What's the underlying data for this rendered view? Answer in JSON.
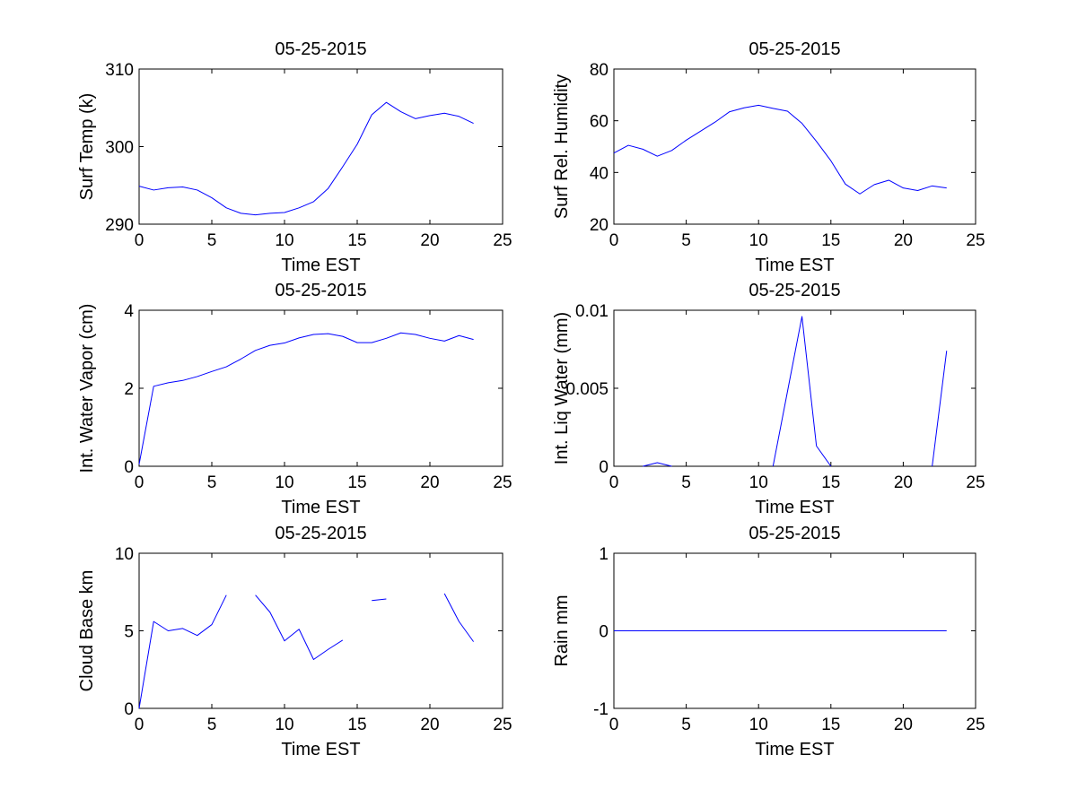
{
  "figure": {
    "background": "#ffffff",
    "line_color": "#0000ff",
    "layout": "3 rows x 2 columns"
  },
  "chart_data": [
    {
      "type": "line",
      "title": "05-25-2015",
      "xlabel": "Time EST",
      "ylabel": "Surf Temp (k)",
      "xlim": [
        0,
        25
      ],
      "ylim": [
        290,
        310
      ],
      "xticks": [
        0,
        5,
        10,
        15,
        20,
        25
      ],
      "yticks": [
        290,
        300,
        310
      ],
      "ytick_labels": [
        "290",
        "300",
        "310"
      ],
      "grid": false,
      "x": [
        0,
        1,
        2,
        3,
        4,
        5,
        6,
        7,
        8,
        9,
        10,
        11,
        12,
        13,
        14,
        15,
        16,
        17,
        18,
        19,
        20,
        21,
        22,
        23
      ],
      "series": [
        {
          "values": [
            294.9,
            294.4,
            294.7,
            294.8,
            294.4,
            293.4,
            292.1,
            291.4,
            291.2,
            291.4,
            291.5,
            292.1,
            292.9,
            294.6,
            297.4,
            300.3,
            304.1,
            305.7,
            304.5,
            303.6,
            304.0,
            304.3,
            303.9,
            303.0
          ]
        }
      ]
    },
    {
      "type": "line",
      "title": "05-25-2015",
      "xlabel": "Time EST",
      "ylabel": "Surf Rel. Humidity",
      "xlim": [
        0,
        25
      ],
      "ylim": [
        20,
        80
      ],
      "xticks": [
        0,
        5,
        10,
        15,
        20,
        25
      ],
      "yticks": [
        20,
        40,
        60,
        80
      ],
      "ytick_labels": [
        "20",
        "40",
        "60",
        "80"
      ],
      "grid": false,
      "x": [
        0,
        1,
        2,
        3,
        4,
        5,
        6,
        7,
        8,
        9,
        10,
        11,
        12,
        13,
        14,
        15,
        16,
        17,
        18,
        19,
        20,
        21,
        22,
        23
      ],
      "series": [
        {
          "values": [
            47.5,
            50.5,
            49.0,
            46.3,
            48.5,
            52.5,
            56.0,
            59.5,
            63.5,
            65.0,
            66.0,
            64.8,
            63.7,
            59.0,
            52.0,
            44.5,
            35.5,
            31.7,
            35.3,
            37.0,
            34.0,
            33.0,
            34.8,
            34.0
          ]
        }
      ]
    },
    {
      "type": "line",
      "title": "05-25-2015",
      "xlabel": "Time EST",
      "ylabel": "Int. Water Vapor (cm)",
      "xlim": [
        0,
        25
      ],
      "ylim": [
        0,
        4
      ],
      "xticks": [
        0,
        5,
        10,
        15,
        20,
        25
      ],
      "yticks": [
        0,
        2,
        4
      ],
      "ytick_labels": [
        "0",
        "2",
        "4"
      ],
      "grid": false,
      "x": [
        0,
        1,
        2,
        3,
        4,
        5,
        6,
        7,
        8,
        9,
        10,
        11,
        12,
        13,
        14,
        15,
        16,
        17,
        18,
        19,
        20,
        21,
        22,
        23
      ],
      "series": [
        {
          "values": [
            0.05,
            2.05,
            2.14,
            2.2,
            2.3,
            2.43,
            2.55,
            2.75,
            2.97,
            3.1,
            3.16,
            3.29,
            3.38,
            3.4,
            3.33,
            3.17,
            3.17,
            3.28,
            3.42,
            3.38,
            3.28,
            3.21,
            3.35,
            3.25
          ]
        }
      ]
    },
    {
      "type": "line",
      "title": "05-25-2015",
      "xlabel": "Time EST",
      "ylabel": "Int. Liq Water (mm)",
      "xlim": [
        0,
        25
      ],
      "ylim": [
        0,
        0.01
      ],
      "xticks": [
        0,
        5,
        10,
        15,
        20,
        25
      ],
      "yticks": [
        0,
        0.005,
        0.01
      ],
      "ytick_labels": [
        "0",
        "0.005",
        "0.01"
      ],
      "grid": false,
      "x": [
        0,
        1,
        2,
        3,
        4,
        5,
        6,
        7,
        8,
        9,
        10,
        11,
        12,
        13,
        14,
        15,
        16,
        17,
        18,
        19,
        20,
        21,
        22,
        23
      ],
      "series": [
        {
          "values": [
            null,
            null,
            0,
            0.00023,
            0,
            null,
            null,
            null,
            null,
            null,
            null,
            0,
            0.0048,
            0.0096,
            0.0013,
            0,
            null,
            null,
            null,
            null,
            null,
            null,
            0,
            0.0074
          ]
        }
      ]
    },
    {
      "type": "line",
      "title": "05-25-2015",
      "xlabel": "Time EST",
      "ylabel": "Cloud Base km",
      "xlim": [
        0,
        25
      ],
      "ylim": [
        0,
        10
      ],
      "xticks": [
        0,
        5,
        10,
        15,
        20,
        25
      ],
      "yticks": [
        0,
        5,
        10
      ],
      "ytick_labels": [
        "0",
        "5",
        "10"
      ],
      "grid": false,
      "x": [
        0,
        1,
        2,
        3,
        4,
        5,
        6,
        7,
        8,
        9,
        10,
        11,
        12,
        13,
        14,
        15,
        16,
        17,
        18,
        19,
        20,
        21,
        22,
        23
      ],
      "series": [
        {
          "values": [
            0,
            5.6,
            5.0,
            5.15,
            4.7,
            5.4,
            7.3,
            null,
            7.3,
            6.2,
            4.35,
            5.1,
            3.15,
            3.8,
            4.4,
            null,
            6.95,
            7.05,
            null,
            null,
            null,
            7.4,
            5.6,
            4.3
          ]
        }
      ]
    },
    {
      "type": "line",
      "title": "05-25-2015",
      "xlabel": "Time EST",
      "ylabel": "Rain mm",
      "xlim": [
        0,
        25
      ],
      "ylim": [
        -1,
        1
      ],
      "xticks": [
        0,
        5,
        10,
        15,
        20,
        25
      ],
      "yticks": [
        -1,
        0,
        1
      ],
      "ytick_labels": [
        "-1",
        "0",
        "1"
      ],
      "grid": false,
      "x": [
        0,
        1,
        2,
        3,
        4,
        5,
        6,
        7,
        8,
        9,
        10,
        11,
        12,
        13,
        14,
        15,
        16,
        17,
        18,
        19,
        20,
        21,
        22,
        23
      ],
      "series": [
        {
          "values": [
            0,
            0,
            0,
            0,
            0,
            0,
            0,
            0,
            0,
            0,
            0,
            0,
            0,
            0,
            0,
            0,
            0,
            0,
            0,
            0,
            0,
            0,
            0,
            0
          ]
        }
      ]
    }
  ]
}
